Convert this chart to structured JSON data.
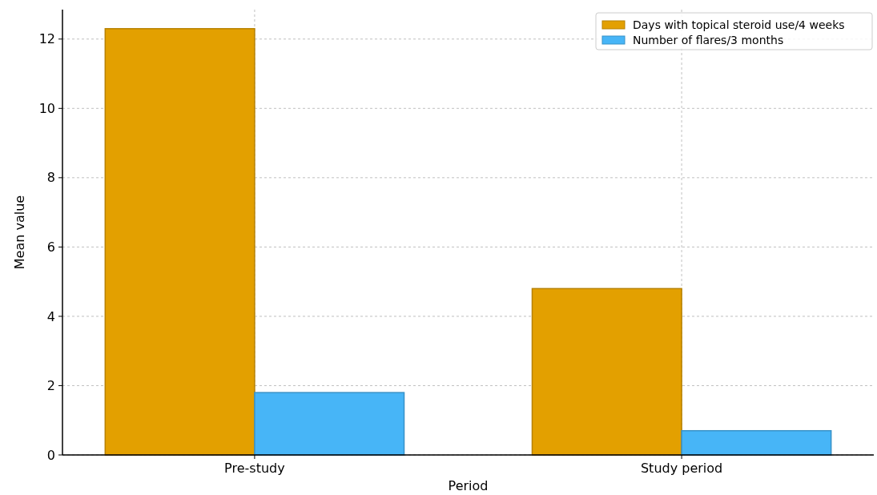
{
  "chart_data": {
    "type": "bar",
    "xlabel": "Period",
    "ylabel": "Mean value",
    "categories": [
      "Pre-study",
      "Study period"
    ],
    "series": [
      {
        "name": "Days with topical steroid use/4 weeks",
        "color": "#e3a000",
        "values": [
          12.3,
          4.8
        ]
      },
      {
        "name": "Number of flares/3 months",
        "color": "#47b5f7",
        "values": [
          1.8,
          0.7
        ]
      }
    ],
    "ylim": [
      0,
      12.85
    ],
    "yticks": [
      0,
      2,
      4,
      6,
      8,
      10,
      12
    ],
    "grid": true,
    "legend": "top right"
  }
}
